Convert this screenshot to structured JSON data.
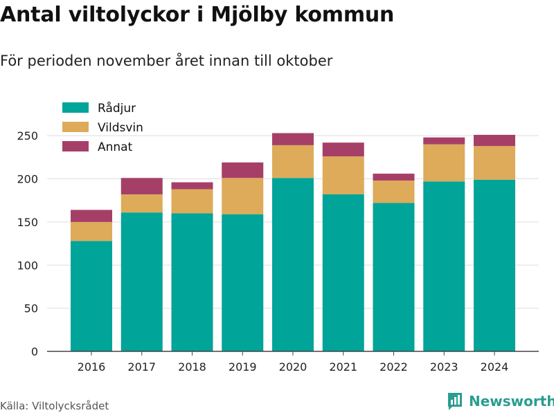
{
  "header": {
    "title": "Antal viltolyckor i Mjölby kommun",
    "subtitle": "För perioden november året innan till oktober"
  },
  "footer": {
    "source": "Källa: Viltolycksrådet",
    "brand": "Newsworthy"
  },
  "chart_data": {
    "type": "bar",
    "stacked": true,
    "categories": [
      "2016",
      "2017",
      "2018",
      "2019",
      "2020",
      "2021",
      "2022",
      "2023",
      "2024"
    ],
    "series": [
      {
        "name": "Rådjur",
        "color": "#00a499",
        "values": [
          128,
          161,
          160,
          159,
          201,
          182,
          172,
          197,
          199
        ]
      },
      {
        "name": "Vildsvin",
        "color": "#ddab5a",
        "values": [
          22,
          21,
          28,
          42,
          38,
          44,
          26,
          43,
          39
        ]
      },
      {
        "name": "Annat",
        "color": "#a63f68",
        "values": [
          14,
          19,
          8,
          18,
          14,
          16,
          8,
          8,
          13
        ]
      }
    ],
    "ylim": [
      0,
      275
    ],
    "yticks": [
      0,
      50,
      100,
      150,
      200,
      250
    ],
    "grid": true,
    "legend_position": "top-left"
  }
}
